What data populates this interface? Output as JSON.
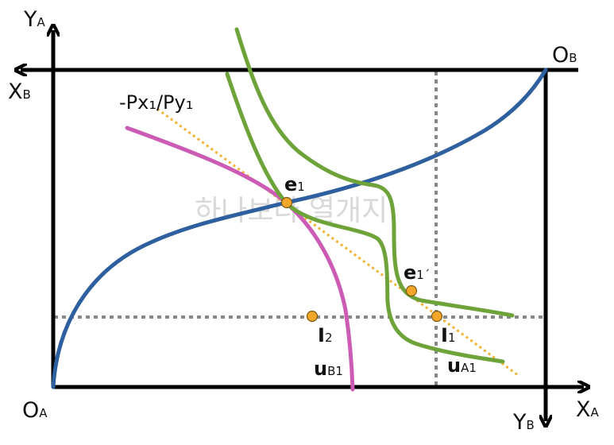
{
  "axes": {
    "ya": {
      "main": "Y",
      "sub": "A"
    },
    "xb": {
      "main": "X",
      "sub": "B"
    },
    "ob": {
      "main": "O",
      "sub": "B"
    },
    "oa": {
      "main": "O",
      "sub": "A"
    },
    "xa": {
      "main": "X",
      "sub": "A"
    },
    "yb": {
      "main": "Y",
      "sub": "B"
    }
  },
  "price_line_label": "-Px₁/Py₁",
  "points": {
    "e1": {
      "main": "e",
      "sub": "1"
    },
    "e1_prime": {
      "main": "e",
      "sub": "1´"
    },
    "i1": {
      "main": "I",
      "sub": "1"
    },
    "i2": {
      "main": "I",
      "sub": "2"
    }
  },
  "curves": {
    "ub1": {
      "main": "u",
      "sub": "B1"
    },
    "ua1": {
      "main": "u",
      "sub": "A1"
    }
  },
  "watermark": "하나보다 열개지",
  "colors": {
    "frame": "#000000",
    "contract_curve": "#2e5f9e",
    "indifference_a": "#6ea33a",
    "indifference_b": "#cc5bb5",
    "budget_line": "#f2b233",
    "guide_lines": "#888888",
    "point_fill": "#f3a72a"
  }
}
